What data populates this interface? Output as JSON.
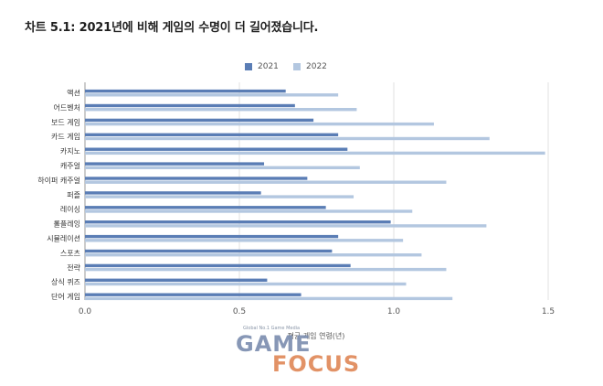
{
  "colors": {
    "series_2021": "#5a7db5",
    "series_2022": "#b3c7e0",
    "grid": "#e2e2e2",
    "axis": "#9a9a9a"
  },
  "chart_data": {
    "type": "bar",
    "orientation": "horizontal",
    "title": "차트 5.1: 2021년에 비해 게임의 수명이 더 길어졌습니다.",
    "xlabel": "평균 게임 연령(년)",
    "ylabel": "",
    "xlim": [
      0,
      1.5
    ],
    "x_ticks": [
      "0.0",
      "0.5",
      "1.0",
      "1.5"
    ],
    "grid": true,
    "legend_position": "top",
    "categories": [
      "액션",
      "어드벤처",
      "보드 게임",
      "카드 게임",
      "카지노",
      "캐주얼",
      "하이퍼 캐주얼",
      "퍼즐",
      "레이싱",
      "롤플레잉",
      "시뮬레이션",
      "스포츠",
      "전략",
      "상식 퀴즈",
      "단어 게임"
    ],
    "series": [
      {
        "name": "2021",
        "values": [
          0.65,
          0.68,
          0.74,
          0.82,
          0.85,
          0.58,
          0.72,
          0.57,
          0.78,
          0.99,
          0.82,
          0.8,
          0.86,
          0.59,
          0.7
        ]
      },
      {
        "name": "2022",
        "values": [
          0.82,
          0.88,
          1.13,
          1.31,
          1.49,
          0.89,
          1.17,
          0.87,
          1.06,
          1.3,
          1.03,
          1.09,
          1.17,
          1.04,
          1.19
        ]
      }
    ]
  },
  "watermark": {
    "caption": "Global No.1 Game Media",
    "line1": "GAME",
    "line2": "FOCUS"
  }
}
